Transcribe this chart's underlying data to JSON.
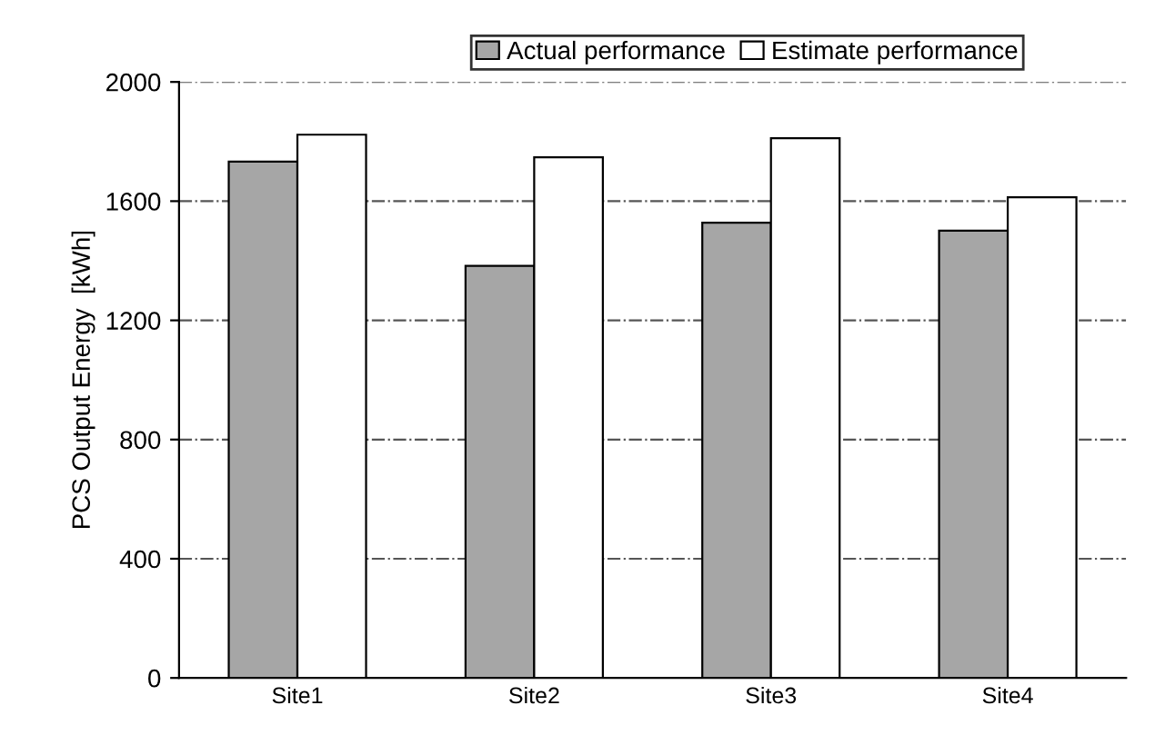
{
  "chart_data": {
    "type": "bar",
    "ylabel": "PCS Output Energy  [kWh]",
    "categories": [
      "Site1",
      "Site2",
      "Site3",
      "Site4"
    ],
    "series": [
      {
        "name": "Actual performance",
        "color": "#a6a6a6",
        "values": [
          1733,
          1383,
          1528,
          1501
        ]
      },
      {
        "name": "Estimate performance",
        "color": "#ffffff",
        "values": [
          1823,
          1747,
          1811,
          1613
        ]
      }
    ],
    "ylim": [
      0,
      2000
    ],
    "yticks": [
      0,
      400,
      800,
      1200,
      1600,
      2000
    ],
    "grid": "y",
    "legend": "top"
  }
}
